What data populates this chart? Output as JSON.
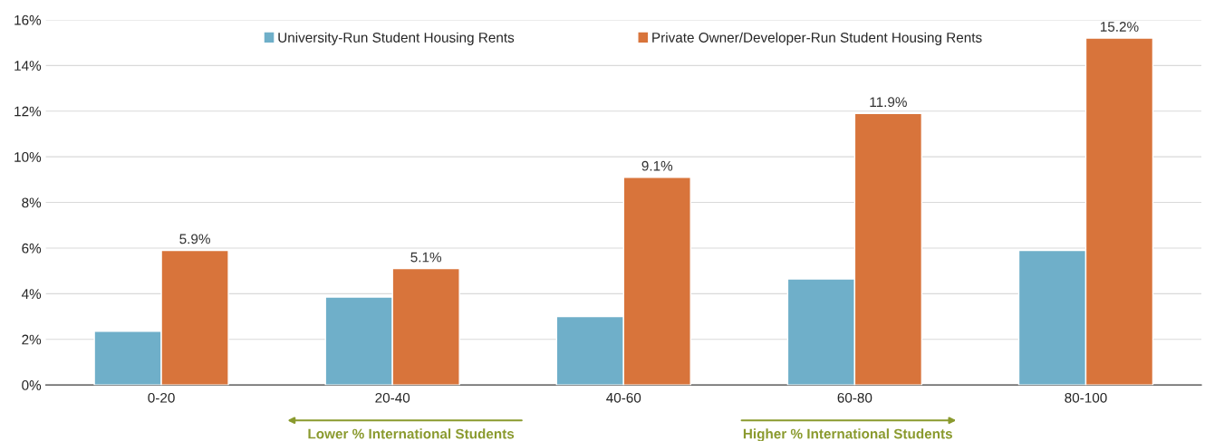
{
  "chart_data": {
    "type": "bar",
    "categories": [
      "0-20",
      "20-40",
      "40-60",
      "60-80",
      "80-100"
    ],
    "series": [
      {
        "name": "University-Run Student Housing Rents",
        "color": "#6fafc9",
        "values": [
          2.35,
          3.85,
          3.0,
          4.65,
          5.9
        ]
      },
      {
        "name": "Private Owner/Developer-Run Student Housing Rents",
        "color": "#d8743b",
        "values": [
          5.9,
          5.1,
          9.1,
          11.9,
          15.2
        ],
        "value_labels": [
          "5.9%",
          "5.1%",
          "9.1%",
          "11.9%",
          "15.2%"
        ]
      }
    ],
    "ylim": [
      0,
      16
    ],
    "yticks": [
      {
        "value": 0,
        "label": "0%"
      },
      {
        "value": 2,
        "label": "2%"
      },
      {
        "value": 4,
        "label": "4%"
      },
      {
        "value": 6,
        "label": "6%"
      },
      {
        "value": 8,
        "label": "8%"
      },
      {
        "value": 10,
        "label": "10%"
      },
      {
        "value": 12,
        "label": "12%"
      },
      {
        "value": 14,
        "label": "14%"
      },
      {
        "value": 16,
        "label": "16%"
      }
    ],
    "grid": "y",
    "legend": "top",
    "annotations": [
      "Lower % International Students",
      "Higher % International Students"
    ]
  }
}
